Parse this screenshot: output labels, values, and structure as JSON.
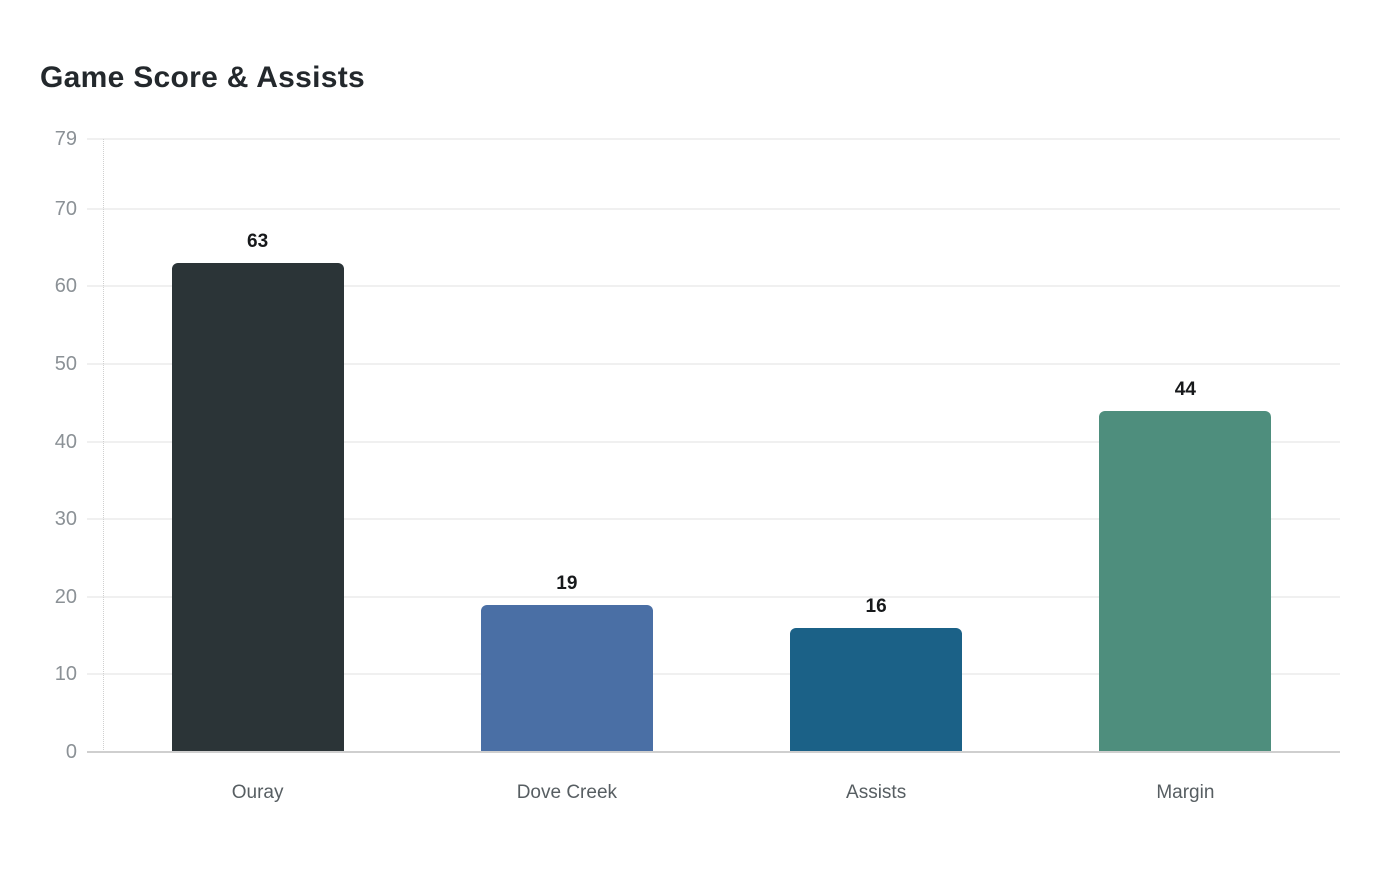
{
  "chart_data": {
    "type": "bar",
    "title": "Game Score & Assists",
    "categories": [
      "Ouray",
      "Dove Creek",
      "Assists",
      "Margin"
    ],
    "values": [
      63,
      19,
      16,
      44
    ],
    "bar_colors": [
      "#2b3437",
      "#4a6fa5",
      "#1b6187",
      "#4e8e7d"
    ],
    "y_ticks": [
      0,
      10,
      20,
      30,
      40,
      50,
      60,
      70,
      79
    ],
    "ylim": [
      0,
      79
    ],
    "xlabel": "",
    "ylabel": "",
    "grid": true,
    "legend": "none",
    "value_labels_shown": true
  },
  "colors": {
    "background": "#ffffff",
    "title_text": "#23282c",
    "tick_label_text": "#8b9196",
    "category_label_text": "#575e62",
    "value_label_text": "#17191b",
    "gridline": "#f0f0f0",
    "baseline": "#cfcfcf",
    "axis_dotted_line": "#d0d0d0"
  }
}
